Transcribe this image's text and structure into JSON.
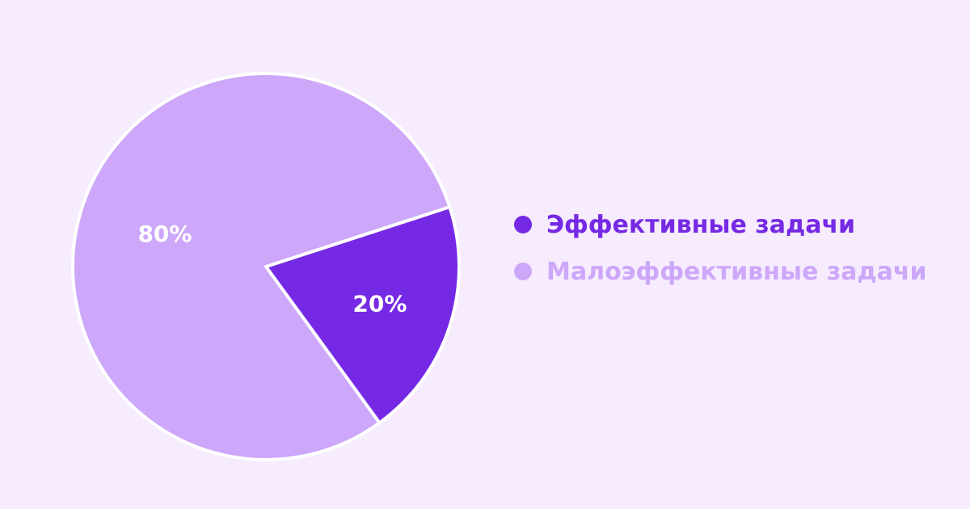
{
  "chart_data": {
    "type": "pie",
    "title": "",
    "categories": [
      "Эффективные задачи",
      "Малоэффективные задачи"
    ],
    "values": [
      20,
      80
    ],
    "labels": [
      "20%",
      "80%"
    ],
    "colors": [
      "#7629e4",
      "#cda7fa"
    ],
    "legend_text_colors": [
      "#7629e4",
      "#cda7fa"
    ],
    "legend_position": "right",
    "start_angle_deg": 72,
    "direction": "clockwise"
  },
  "background": "#f6ecfe",
  "slice_stroke": "#ffffff"
}
